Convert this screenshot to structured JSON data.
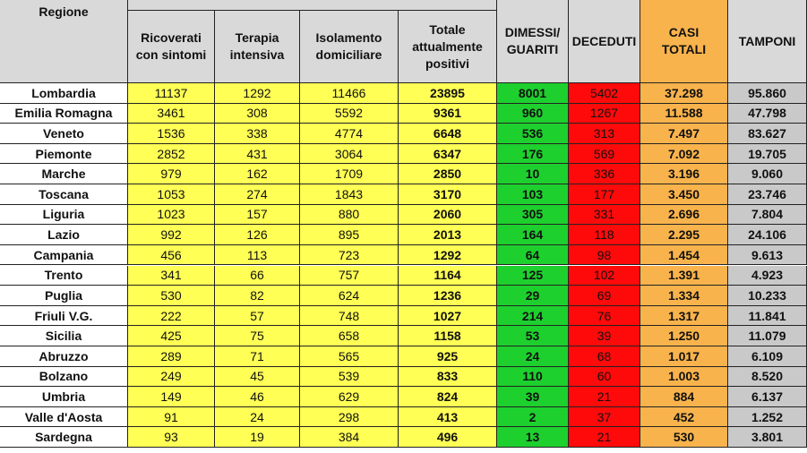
{
  "table": {
    "header": [
      "Regione",
      "Ricoverati con sintomi",
      "Terapia intensiva",
      "Isolamento domiciliare",
      "Totale attualmente positivi",
      "DIMESSI/ GUARITI",
      "DECEDUTI",
      "CASI TOTALI",
      "TAMPONI"
    ],
    "rows": [
      [
        "Lombardia",
        "11137",
        "1292",
        "11466",
        "23895",
        "8001",
        "5402",
        "37.298",
        "95.860"
      ],
      [
        "Emilia Romagna",
        "3461",
        "308",
        "5592",
        "9361",
        "960",
        "1267",
        "11.588",
        "47.798"
      ],
      [
        "Veneto",
        "1536",
        "338",
        "4774",
        "6648",
        "536",
        "313",
        "7.497",
        "83.627"
      ],
      [
        "Piemonte",
        "2852",
        "431",
        "3064",
        "6347",
        "176",
        "569",
        "7.092",
        "19.705"
      ],
      [
        "Marche",
        "979",
        "162",
        "1709",
        "2850",
        "10",
        "336",
        "3.196",
        "9.060"
      ],
      [
        "Toscana",
        "1053",
        "274",
        "1843",
        "3170",
        "103",
        "177",
        "3.450",
        "23.746"
      ],
      [
        "Liguria",
        "1023",
        "157",
        "880",
        "2060",
        "305",
        "331",
        "2.696",
        "7.804"
      ],
      [
        "Lazio",
        "992",
        "126",
        "895",
        "2013",
        "164",
        "118",
        "2.295",
        "24.106"
      ],
      [
        "Campania",
        "456",
        "113",
        "723",
        "1292",
        "64",
        "98",
        "1.454",
        "9.613"
      ],
      [
        "Trento",
        "341",
        "66",
        "757",
        "1164",
        "125",
        "102",
        "1.391",
        "4.923"
      ],
      [
        "Puglia",
        "530",
        "82",
        "624",
        "1236",
        "29",
        "69",
        "1.334",
        "10.233"
      ],
      [
        "Friuli V.G.",
        "222",
        "57",
        "748",
        "1027",
        "214",
        "76",
        "1.317",
        "11.841"
      ],
      [
        "Sicilia",
        "425",
        "75",
        "658",
        "1158",
        "53",
        "39",
        "1.250",
        "11.079"
      ],
      [
        "Abruzzo",
        "289",
        "71",
        "565",
        "925",
        "24",
        "68",
        "1.017",
        "6.109"
      ],
      [
        "Bolzano",
        "249",
        "45",
        "539",
        "833",
        "110",
        "60",
        "1.003",
        "8.520"
      ],
      [
        "Umbria",
        "149",
        "46",
        "629",
        "824",
        "39",
        "21",
        "884",
        "6.137"
      ],
      [
        "Valle d'Aosta",
        "91",
        "24",
        "298",
        "413",
        "2",
        "37",
        "452",
        "1.252"
      ],
      [
        "Sardegna",
        "93",
        "19",
        "384",
        "496",
        "13",
        "21",
        "530",
        "3.801"
      ]
    ]
  }
}
